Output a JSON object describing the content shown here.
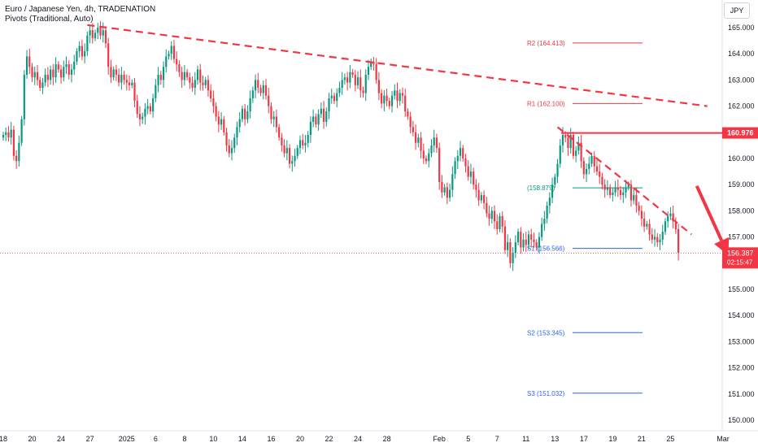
{
  "header": {
    "title": "Euro / Japanese Yen, 4h, TRADENATION",
    "indicator": "Pivots (Traditional, Auto)"
  },
  "currency_button": "JPY",
  "colors": {
    "up": "#089981",
    "down": "#f23645",
    "trendline": "#f23645",
    "level_line": "#f23645",
    "pivot_r": "#f23645",
    "pivot_p": "#089981",
    "pivot_s": "#2962ff",
    "axis_text": "#131722",
    "grid": "#f0f3fa"
  },
  "chart_data": {
    "type": "candlestick",
    "y_axis": {
      "ticks": [
        "165.000",
        "164.000",
        "163.000",
        "162.000",
        "161.000",
        "160.000",
        "159.000",
        "158.000",
        "157.000",
        "156.000",
        "155.000",
        "154.000",
        "153.000",
        "152.000",
        "151.000",
        "150.000"
      ],
      "ylim": [
        149.8,
        165.4
      ],
      "position": "right"
    },
    "x_axis": {
      "ticks": [
        {
          "label": "18",
          "bar": 0
        },
        {
          "label": "20",
          "bar": 11
        },
        {
          "label": "24",
          "bar": 22
        },
        {
          "label": "27",
          "bar": 33
        },
        {
          "label": "2025",
          "bar": 47
        },
        {
          "label": "6",
          "bar": 58
        },
        {
          "label": "8",
          "bar": 69
        },
        {
          "label": "10",
          "bar": 80
        },
        {
          "label": "14",
          "bar": 91
        },
        {
          "label": "16",
          "bar": 102
        },
        {
          "label": "20",
          "bar": 113
        },
        {
          "label": "22",
          "bar": 124
        },
        {
          "label": "24",
          "bar": 135
        },
        {
          "label": "28",
          "bar": 146
        },
        {
          "label": "Feb",
          "bar": 166
        },
        {
          "label": "5",
          "bar": 177
        },
        {
          "label": "7",
          "bar": 188
        },
        {
          "label": "11",
          "bar": 199
        },
        {
          "label": "13",
          "bar": 210
        },
        {
          "label": "17",
          "bar": 221
        },
        {
          "label": "19",
          "bar": 232
        },
        {
          "label": "21",
          "bar": 243
        },
        {
          "label": "25",
          "bar": 254
        },
        {
          "label": "Mar",
          "bar": 274
        }
      ]
    },
    "series": [
      {
        "type": "ohlc",
        "closes": [
          160.9,
          161.0,
          160.8,
          161.1,
          160.1,
          159.9,
          160.6,
          161.5,
          163.2,
          163.9,
          163.5,
          163.1,
          163.3,
          163.0,
          162.7,
          162.9,
          163.2,
          163.0,
          163.4,
          163.1,
          163.6,
          163.4,
          163.1,
          163.5,
          163.6,
          163.2,
          163.4,
          163.7,
          164.1,
          164.3,
          163.9,
          164.1,
          164.7,
          164.9,
          164.6,
          164.8,
          165.0,
          164.7,
          164.9,
          164.4,
          163.5,
          163.1,
          163.4,
          163.2,
          162.9,
          163.2,
          163.0,
          162.9,
          162.8,
          162.9,
          162.2,
          161.7,
          161.5,
          161.6,
          161.9,
          162.0,
          161.8,
          162.3,
          162.8,
          163.2,
          163.0,
          163.5,
          163.9,
          164.0,
          164.3,
          163.8,
          163.6,
          163.3,
          163.0,
          163.3,
          163.1,
          162.9,
          162.7,
          163.0,
          163.4,
          162.9,
          162.8,
          163.0,
          162.6,
          162.3,
          162.0,
          161.6,
          161.3,
          161.5,
          161.0,
          160.5,
          160.2,
          160.4,
          160.8,
          161.2,
          161.5,
          161.9,
          161.5,
          161.8,
          162.3,
          162.6,
          163.0,
          162.7,
          162.5,
          162.8,
          162.4,
          162.0,
          161.5,
          161.6,
          161.2,
          160.8,
          160.5,
          160.2,
          160.4,
          159.8,
          159.9,
          160.1,
          160.4,
          160.7,
          160.5,
          160.6,
          160.9,
          161.4,
          161.6,
          161.3,
          161.7,
          161.9,
          161.4,
          161.8,
          162.3,
          162.4,
          162.2,
          162.5,
          162.7,
          163.0,
          163.1,
          162.9,
          163.3,
          163.2,
          162.8,
          163.1,
          162.6,
          162.5,
          163.2,
          163.5,
          163.7,
          163.6,
          163.0,
          162.5,
          162.1,
          162.4,
          162.2,
          162.0,
          162.4,
          162.6,
          162.2,
          162.5,
          162.4,
          161.8,
          161.6,
          161.2,
          161.0,
          160.6,
          160.8,
          160.3,
          160.0,
          159.9,
          160.2,
          160.5,
          160.8,
          160.4,
          159.1,
          158.7,
          158.9,
          158.5,
          158.8,
          159.4,
          159.9,
          160.1,
          160.4,
          160.0,
          159.7,
          159.3,
          159.5,
          159.0,
          158.8,
          158.4,
          158.6,
          158.3,
          157.9,
          157.7,
          158.0,
          157.6,
          157.3,
          157.8,
          157.4,
          156.5,
          156.8,
          156.0,
          156.4,
          156.8,
          157.2,
          156.6,
          156.9,
          156.7,
          157.1,
          156.9,
          156.8,
          156.6,
          157.0,
          157.5,
          157.7,
          158.2,
          158.5,
          159.0,
          159.3,
          159.8,
          160.5,
          160.9,
          160.8,
          160.4,
          160.9,
          160.1,
          160.3,
          160.6,
          159.9,
          159.4,
          159.6,
          159.8,
          160.1,
          159.7,
          159.5,
          159.3,
          159.0,
          158.8,
          158.9,
          158.6,
          158.7,
          158.9,
          158.8,
          158.6,
          158.7,
          158.9,
          159.0,
          158.4,
          158.6,
          158.2,
          158.0,
          157.7,
          157.4,
          157.5,
          157.1,
          156.9,
          157.0,
          156.8,
          156.9,
          157.2,
          157.6,
          157.8,
          157.9,
          157.6,
          157.3,
          156.4
        ],
        "last_value": "156.387",
        "countdown": "02:15:47"
      }
    ],
    "pivots": [
      {
        "name": "R2",
        "label": "R2 (164.413)",
        "value": 164.413,
        "kind": "r"
      },
      {
        "name": "R1",
        "label": "R1 (162.100)",
        "value": 162.1,
        "kind": "r"
      },
      {
        "name": "P",
        "label": "(158.879)",
        "value": 158.879,
        "kind": "p"
      },
      {
        "name": "S1",
        "label": "S1 (156.566)",
        "value": 156.566,
        "kind": "s"
      },
      {
        "name": "S2",
        "label": "S2 (153.345)",
        "value": 153.345,
        "kind": "s"
      },
      {
        "name": "S3",
        "label": "S3 (151.032)",
        "value": 151.032,
        "kind": "s"
      }
    ],
    "level_line": {
      "value": 160.976,
      "label": "160.976"
    },
    "trendlines": [
      {
        "from": [
          32,
          165.1
        ],
        "to": [
          268,
          162.0
        ]
      },
      {
        "from": [
          211,
          161.2
        ],
        "to": [
          262,
          157.1
        ]
      }
    ],
    "arrow": {
      "from": [
        264,
        158.95
      ],
      "to": [
        276,
        156.3
      ]
    },
    "grid": false
  }
}
